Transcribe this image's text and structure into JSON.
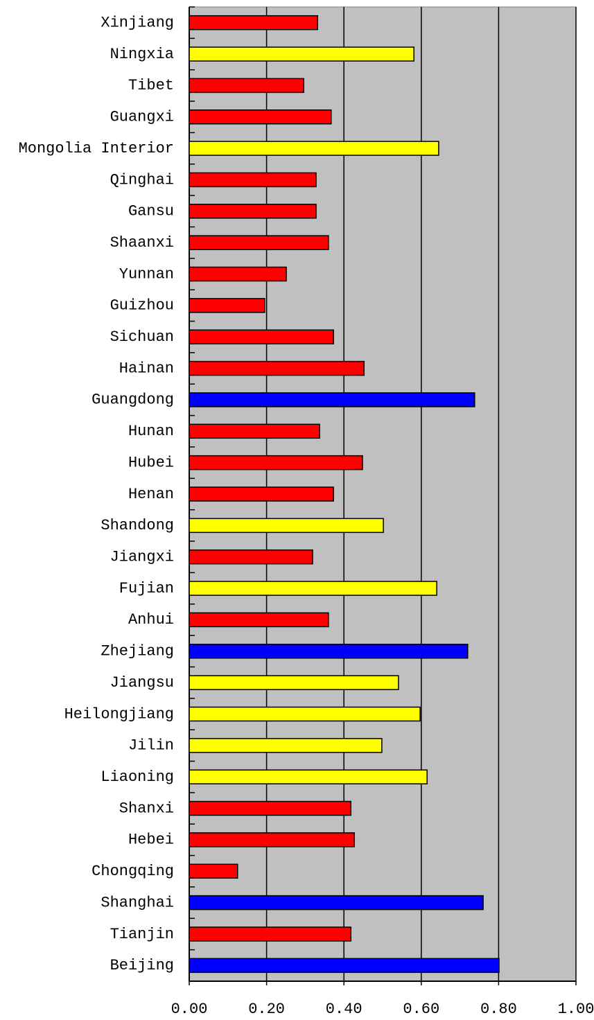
{
  "chart_data": {
    "type": "hbar",
    "categories": [
      "Xinjiang",
      "Ningxia",
      "Tibet",
      "Guangxi",
      "Mongolia Interior",
      "Qinghai",
      "Gansu",
      "Shaanxi",
      "Yunnan",
      "Guizhou",
      "Sichuan",
      "Hainan",
      "Guangdong",
      "Hunan",
      "Hubei",
      "Henan",
      "Shandong",
      "Jiangxi",
      "Fujian",
      "Anhui",
      "Zhejiang",
      "Jiangsu",
      "Heilongjiang",
      "Jilin",
      "Liaoning",
      "Shanxi",
      "Hebei",
      "Chongqing",
      "Shanghai",
      "Tianjin",
      "Beijing"
    ],
    "values": [
      0.332,
      0.581,
      0.296,
      0.367,
      0.645,
      0.328,
      0.328,
      0.36,
      0.251,
      0.195,
      0.373,
      0.452,
      0.738,
      0.337,
      0.448,
      0.373,
      0.502,
      0.319,
      0.64,
      0.36,
      0.72,
      0.541,
      0.597,
      0.498,
      0.615,
      0.418,
      0.427,
      0.125,
      0.76,
      0.418,
      0.801
    ],
    "colors": [
      "#ff0000",
      "#ffff00",
      "#ff0000",
      "#ff0000",
      "#ffff00",
      "#ff0000",
      "#ff0000",
      "#ff0000",
      "#ff0000",
      "#ff0000",
      "#ff0000",
      "#ff0000",
      "#0000ff",
      "#ff0000",
      "#ff0000",
      "#ff0000",
      "#ffff00",
      "#ff0000",
      "#ffff00",
      "#ff0000",
      "#0000ff",
      "#ffff00",
      "#ffff00",
      "#ffff00",
      "#ffff00",
      "#ff0000",
      "#ff0000",
      "#ff0000",
      "#0000ff",
      "#ff0000",
      "#0000ff"
    ],
    "xlim": [
      0,
      1
    ],
    "xticks": [
      {
        "value": 0,
        "label": "0.00"
      },
      {
        "value": 0.2,
        "label": "0.20"
      },
      {
        "value": 0.4,
        "label": "0.40"
      },
      {
        "value": 0.6,
        "label": "0.60"
      },
      {
        "value": 0.8,
        "label": "0.80"
      },
      {
        "value": 1,
        "label": "1.00"
      }
    ],
    "grid": true,
    "background": "#c0c0c0"
  }
}
